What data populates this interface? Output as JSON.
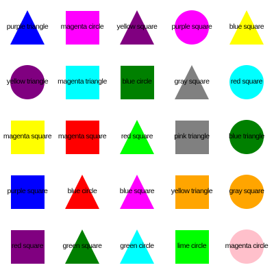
{
  "colors": {
    "blue": "#0000ff",
    "magenta": "#ff00ff",
    "purple": "#800080",
    "yellow": "#ffff00",
    "cyan": "#00ffff",
    "green": "#008000",
    "gray": "#808080",
    "red": "#ff0000",
    "lime": "#00ff00",
    "orange": "#ffa500",
    "pink": "#ffc0cb"
  },
  "rows": [
    [
      {
        "shape": "triangle",
        "color": "blue",
        "label": "purple triangle"
      },
      {
        "shape": "square",
        "color": "magenta",
        "label": "magenta circle"
      },
      {
        "shape": "triangle",
        "color": "purple",
        "label": "yellow square"
      },
      {
        "shape": "circle",
        "color": "magenta",
        "label": "purple square"
      },
      {
        "shape": "triangle",
        "color": "yellow",
        "label": "blue square"
      }
    ],
    [
      {
        "shape": "circle",
        "color": "purple",
        "label": "yellow triangle"
      },
      {
        "shape": "square",
        "color": "cyan",
        "label": "magenta triangle"
      },
      {
        "shape": "square",
        "color": "green",
        "label": "blue circle"
      },
      {
        "shape": "triangle",
        "color": "gray",
        "label": "gray square"
      },
      {
        "shape": "circle",
        "color": "cyan",
        "label": "red square"
      }
    ],
    [
      {
        "shape": "square",
        "color": "yellow",
        "label": "magenta square"
      },
      {
        "shape": "square",
        "color": "red",
        "label": "magenta square"
      },
      {
        "shape": "triangle",
        "color": "lime",
        "label": "red square"
      },
      {
        "shape": "square",
        "color": "gray",
        "label": "pink triangle"
      },
      {
        "shape": "circle",
        "color": "green",
        "label": "blue triangle"
      }
    ],
    [
      {
        "shape": "square",
        "color": "blue",
        "label": "purple square"
      },
      {
        "shape": "triangle",
        "color": "red",
        "label": "blue circle"
      },
      {
        "shape": "triangle",
        "color": "magenta",
        "label": "blue square"
      },
      {
        "shape": "square",
        "color": "orange",
        "label": "yellow triangle"
      },
      {
        "shape": "circle",
        "color": "orange",
        "label": "gray square"
      }
    ],
    [
      {
        "shape": "square",
        "color": "purple",
        "label": "red square"
      },
      {
        "shape": "triangle",
        "color": "green",
        "label": "green square"
      },
      {
        "shape": "triangle",
        "color": "cyan",
        "label": "green circle"
      },
      {
        "shape": "square",
        "color": "lime",
        "label": "lime circle"
      },
      {
        "shape": "circle",
        "color": "pink",
        "label": "magenta circle"
      }
    ]
  ]
}
